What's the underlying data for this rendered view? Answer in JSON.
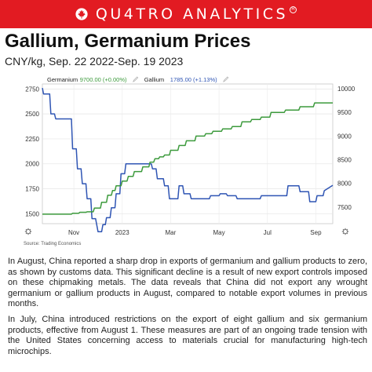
{
  "brand": {
    "name": "QU4TRO ANALYTICS",
    "registered": "R",
    "accent": "#e21b22"
  },
  "title": "Gallium, Germanium Prices",
  "subtitle": "CNY/kg, Sep. 22 2022-Sep. 19 2023",
  "source": "Source: Trading Economics",
  "paragraphs": [
    "In August, China reported a sharp drop in exports of germanium and gallium products to zero, as shown by customs data. This significant decline is a result of new export controls imposed on these chipmaking metals. The data reveals that China did not export any wrought germanium or gallium products in August, compared to notable export volumes in previous months.",
    "In July, China introduced restrictions on the export of eight gallium and six germanium products, effective from August 1. These measures are part of an ongoing trade tension with the United States concerning access to materials crucial for manufacturing high-tech microchips."
  ],
  "chart_data": {
    "type": "line",
    "legend": [
      {
        "name": "Germanium",
        "value_text": "9700.00 (+0.00%)",
        "color": "#3c9a3c"
      },
      {
        "name": "Gallium",
        "value_text": "1785.00 (+1.13%)",
        "color": "#2f55b4"
      }
    ],
    "x_ticks": [
      "Nov",
      "2023",
      "Mar",
      "May",
      "Jul",
      "Sep"
    ],
    "x_tick_positions": [
      1.3,
      3.3,
      5.3,
      7.3,
      9.3,
      11.3
    ],
    "xlim": [
      0,
      12
    ],
    "left_axis": {
      "ticks": [
        1500,
        1750,
        2000,
        2250,
        2500,
        2750
      ],
      "ylim": [
        1400,
        2800
      ]
    },
    "right_axis": {
      "ticks": [
        7500,
        8000,
        8500,
        9000,
        9500,
        10000
      ],
      "ylim": [
        7150,
        10100
      ]
    },
    "series": [
      {
        "name": "Gallium",
        "axis": "left",
        "color": "#2f55b4",
        "x": [
          0.0,
          0.05,
          0.3,
          0.35,
          0.5,
          0.55,
          1.2,
          1.25,
          1.4,
          1.45,
          1.6,
          1.65,
          1.8,
          1.85,
          2.0,
          2.05,
          2.2,
          2.3,
          2.45,
          2.5,
          2.6,
          2.65,
          2.8,
          2.85,
          3.0,
          3.05,
          3.2,
          3.25,
          3.4,
          3.45,
          4.5,
          4.55,
          4.7,
          4.75,
          5.0,
          5.05,
          5.2,
          5.25,
          5.6,
          5.65,
          5.8,
          5.85,
          6.1,
          6.15,
          6.9,
          6.95,
          7.3,
          7.35,
          7.6,
          7.65,
          8.0,
          8.05,
          8.4,
          8.45,
          9.0,
          9.05,
          10.1,
          10.15,
          10.6,
          10.65,
          11.0,
          11.05,
          11.3,
          11.35,
          11.6,
          11.65,
          12.0
        ],
        "values": [
          2760,
          2700,
          2700,
          2500,
          2500,
          2450,
          2450,
          2150,
          2150,
          1950,
          1950,
          1800,
          1800,
          1650,
          1650,
          1450,
          1450,
          1320,
          1320,
          1390,
          1390,
          1460,
          1460,
          1560,
          1560,
          1700,
          1700,
          1900,
          1900,
          2000,
          2000,
          1950,
          1950,
          1850,
          1850,
          1780,
          1780,
          1650,
          1650,
          1780,
          1780,
          1700,
          1700,
          1650,
          1650,
          1680,
          1680,
          1700,
          1700,
          1680,
          1680,
          1650,
          1650,
          1650,
          1650,
          1680,
          1680,
          1780,
          1780,
          1720,
          1720,
          1620,
          1620,
          1680,
          1680,
          1730,
          1785
        ]
      },
      {
        "name": "Germanium",
        "axis": "right",
        "color": "#3c9a3c",
        "x": [
          0.0,
          1.2,
          1.25,
          1.5,
          1.55,
          1.8,
          1.85,
          2.1,
          2.15,
          2.4,
          2.45,
          2.65,
          2.7,
          2.85,
          2.9,
          3.0,
          3.05,
          3.25,
          3.3,
          3.5,
          3.55,
          3.75,
          3.8,
          4.1,
          4.15,
          4.4,
          4.45,
          4.6,
          4.65,
          4.8,
          4.85,
          5.0,
          5.05,
          5.25,
          5.3,
          5.6,
          5.65,
          5.9,
          5.95,
          6.3,
          6.35,
          6.7,
          6.75,
          7.0,
          7.05,
          7.4,
          7.45,
          7.8,
          7.85,
          8.2,
          8.25,
          8.6,
          8.65,
          9.0,
          9.05,
          9.4,
          9.45,
          10.0,
          10.05,
          10.6,
          10.65,
          11.2,
          11.25,
          12.0
        ],
        "values": [
          7350,
          7350,
          7370,
          7370,
          7390,
          7390,
          7400,
          7400,
          7480,
          7480,
          7600,
          7600,
          7750,
          7750,
          7850,
          7850,
          7950,
          7950,
          8050,
          8050,
          8150,
          8150,
          8250,
          8250,
          8350,
          8350,
          8450,
          8450,
          8520,
          8520,
          8560,
          8560,
          8600,
          8600,
          8700,
          8700,
          8800,
          8800,
          8900,
          8900,
          9000,
          9000,
          9050,
          9050,
          9100,
          9100,
          9150,
          9150,
          9200,
          9200,
          9300,
          9300,
          9350,
          9350,
          9400,
          9400,
          9500,
          9500,
          9550,
          9550,
          9620,
          9620,
          9700,
          9700
        ]
      }
    ]
  }
}
